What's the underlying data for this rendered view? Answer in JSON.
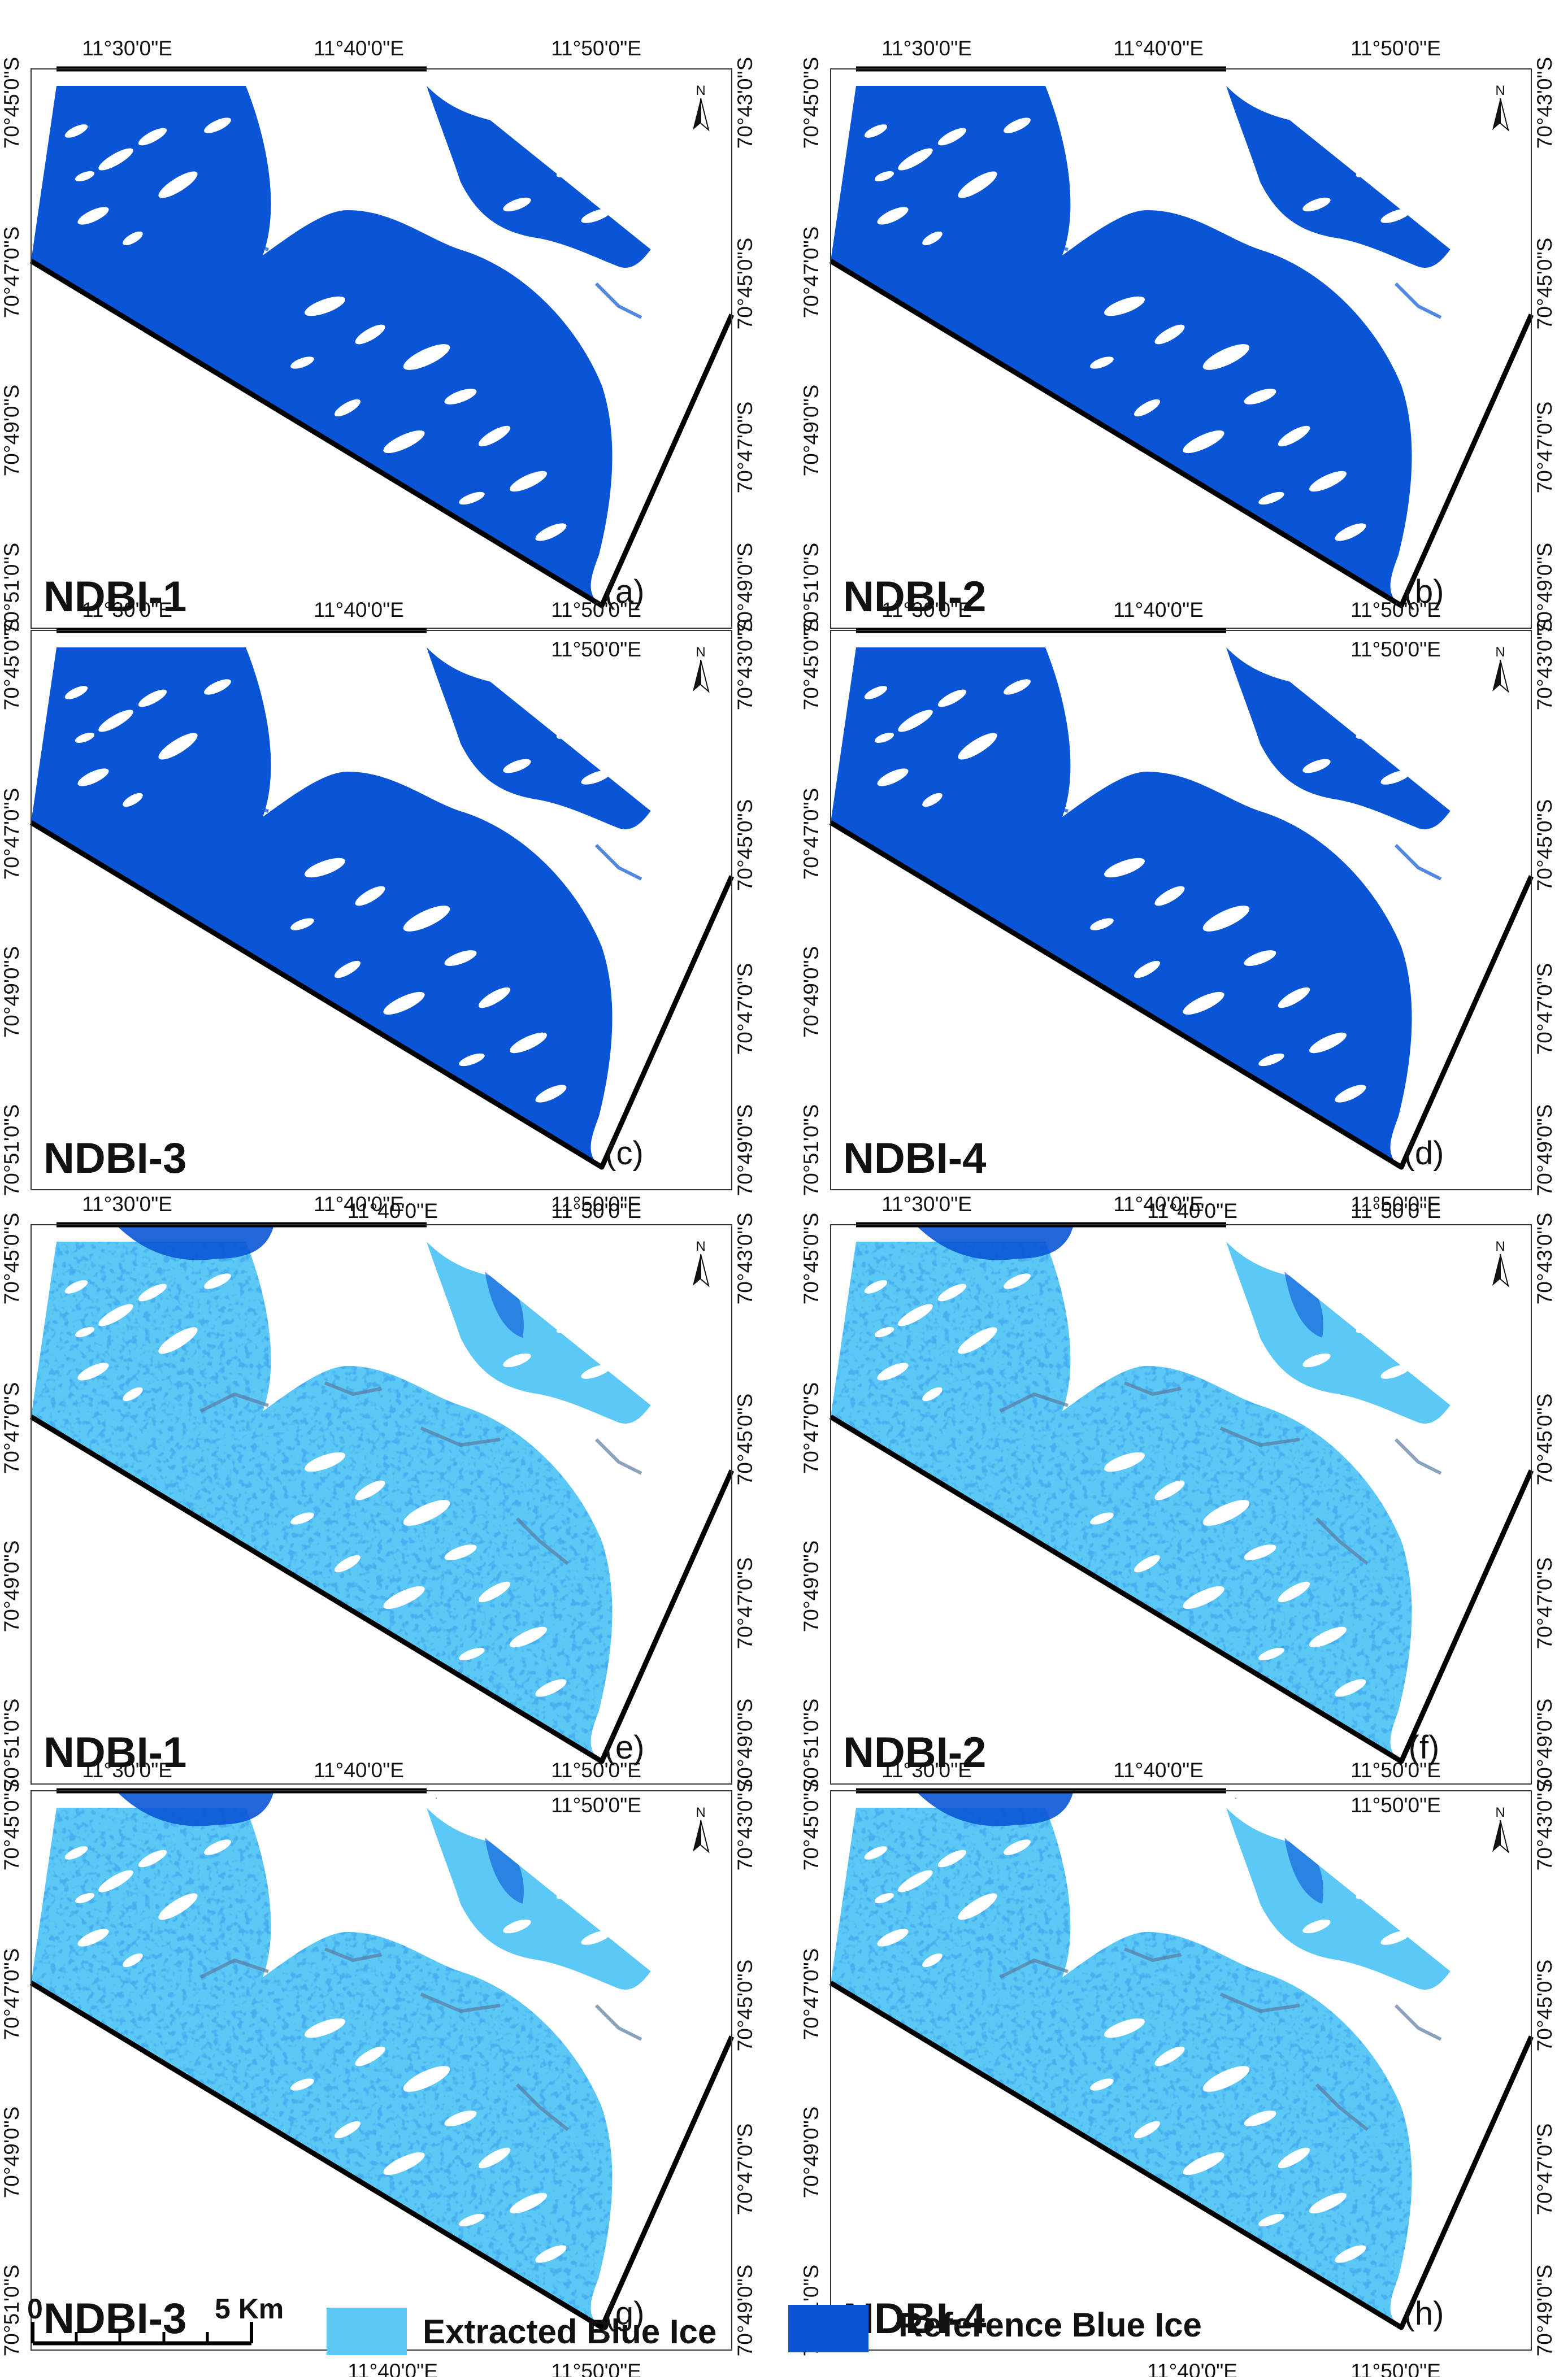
{
  "colors": {
    "extracted": "#5bc8f5",
    "reference": "#0a55d6",
    "snow": "#ffffff",
    "frame": "#000000",
    "shadow": "#5a7aa0"
  },
  "panels": [
    {
      "id": "a",
      "letter": "(a)",
      "index": "NDBI-1",
      "mode": "reference"
    },
    {
      "id": "b",
      "letter": "(b)",
      "index": "NDBI-2",
      "mode": "reference"
    },
    {
      "id": "c",
      "letter": "(c)",
      "index": "NDBI-3",
      "mode": "reference"
    },
    {
      "id": "d",
      "letter": "(d)",
      "index": "NDBI-4",
      "mode": "reference"
    },
    {
      "id": "e",
      "letter": "(e)",
      "index": "NDBI-1",
      "mode": "extracted"
    },
    {
      "id": "f",
      "letter": "(f)",
      "index": "NDBI-2",
      "mode": "extracted"
    },
    {
      "id": "g",
      "letter": "(g)",
      "index": "NDBI-3",
      "mode": "extracted"
    },
    {
      "id": "h",
      "letter": "(h)",
      "index": "NDBI-4",
      "mode": "extracted"
    }
  ],
  "coords": {
    "top": [
      "11°30'0\"E",
      "11°40'0\"E",
      "11°50'0\"E"
    ],
    "bottom": [
      "11°40'0\"E",
      "11°50'0\"E"
    ],
    "left": [
      "70°45'0\"S",
      "70°47'0\"S",
      "70°49'0\"S",
      "70°51'0\"S"
    ],
    "right": [
      "70°43'0\"S",
      "70°45'0\"S",
      "70°47'0\"S",
      "70°49'0\"S"
    ]
  },
  "north_label": "N",
  "legend": {
    "scale_start": "0",
    "scale_end": "5 Km",
    "extracted_label": "Extracted Blue Ice",
    "reference_label": "Reference Blue Ice"
  }
}
